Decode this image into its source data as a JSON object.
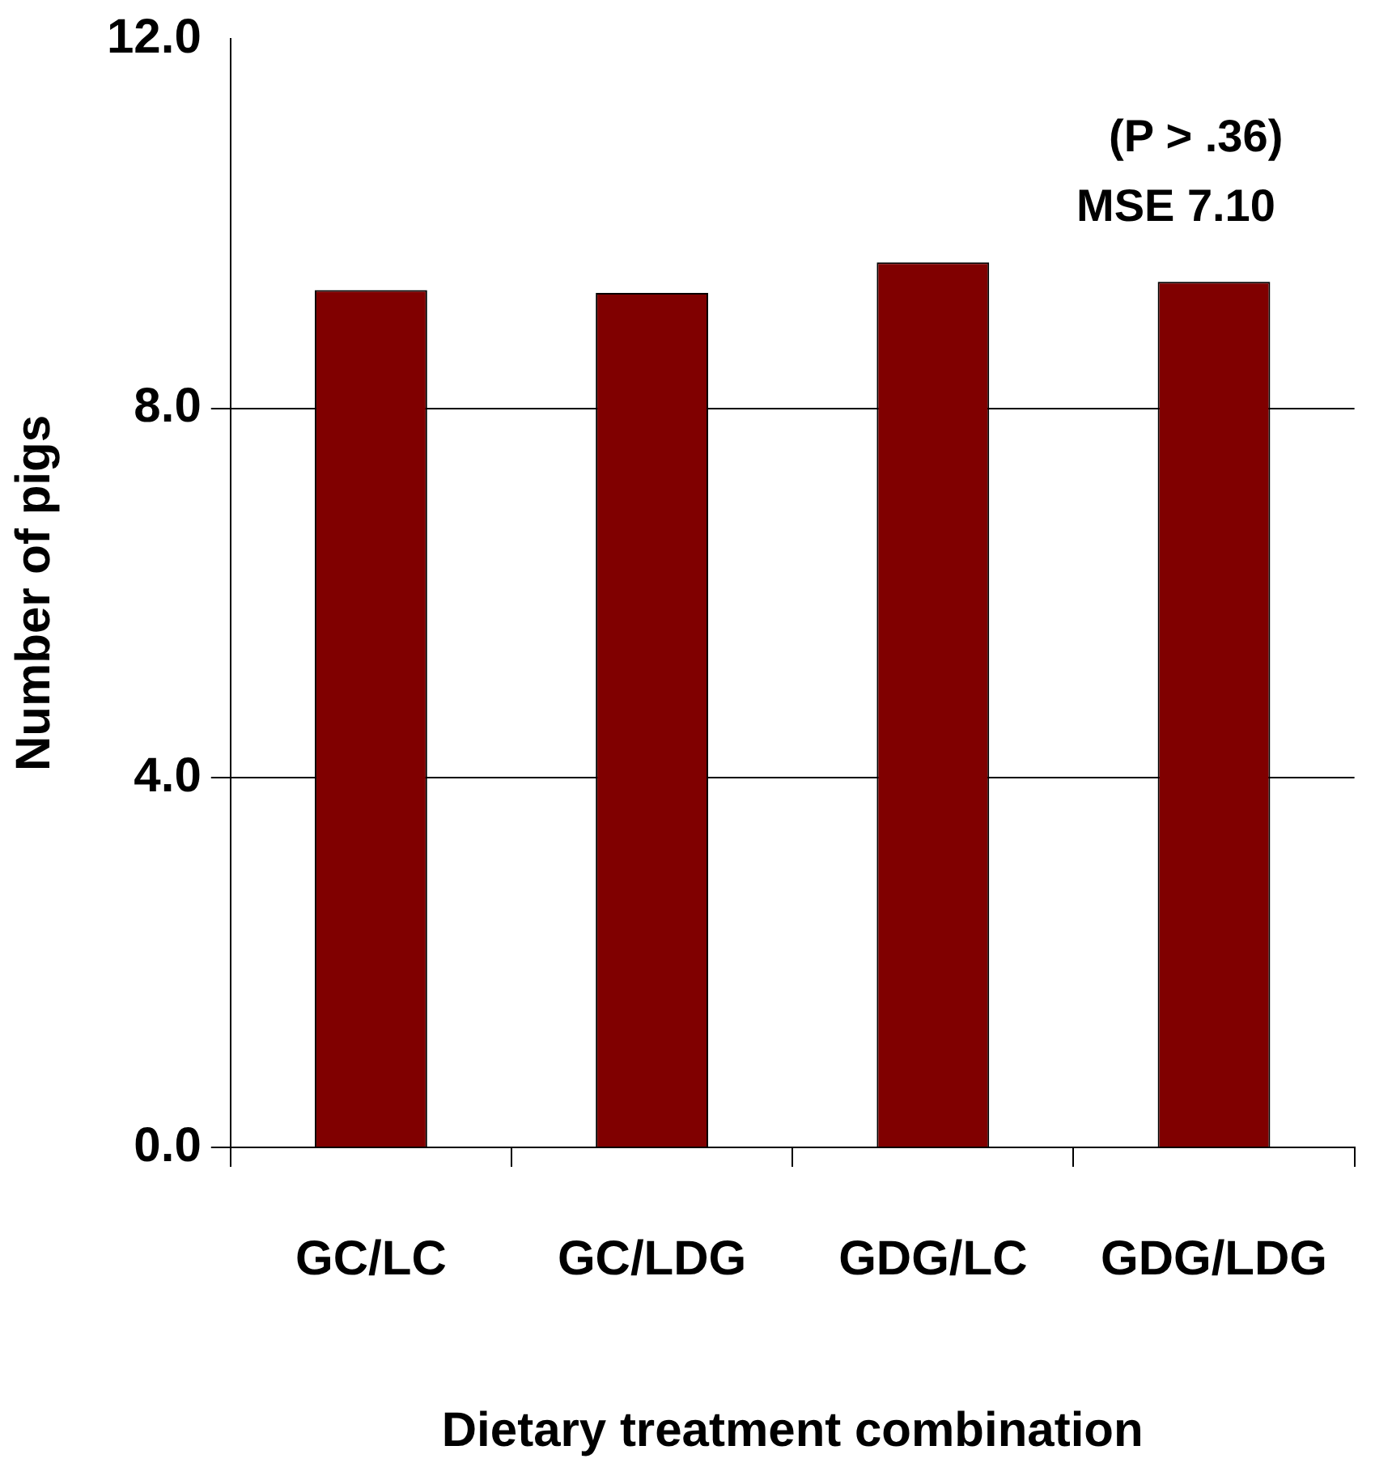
{
  "chart_data": {
    "type": "bar",
    "xlabel": "Dietary treatment combination",
    "ylabel": "Number of pigs",
    "categories": [
      "GC/LC",
      "GC/LDG",
      "GDG/LC",
      "GDG/LDG"
    ],
    "values": [
      9.28,
      9.25,
      9.58,
      9.37
    ],
    "color": "#800000",
    "ylim": [
      0,
      12
    ],
    "yticks": [
      {
        "value": 0,
        "label": "0.0"
      },
      {
        "value": 4,
        "label": "4.0"
      },
      {
        "value": 8,
        "label": "8.0"
      },
      {
        "value": 12,
        "label": "12.0"
      }
    ],
    "grid": "y",
    "legend": false,
    "annotations": [
      "(P > .36)",
      "MSE 7.10"
    ]
  }
}
